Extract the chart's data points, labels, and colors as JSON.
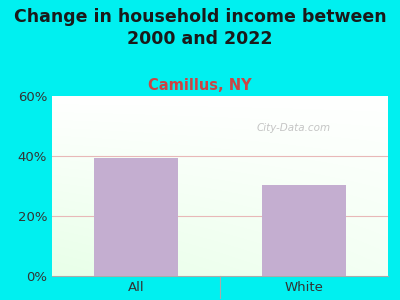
{
  "title": "Change in household income between\n2000 and 2022",
  "subtitle": "Camillus, NY",
  "categories": [
    "All",
    "White"
  ],
  "values": [
    39.5,
    30.5
  ],
  "bar_color": "#c4aed0",
  "title_fontsize": 12.5,
  "subtitle_fontsize": 10.5,
  "subtitle_color": "#cc4444",
  "title_color": "#1a1a1a",
  "tick_label_fontsize": 9.5,
  "ylim": [
    0,
    60
  ],
  "yticks": [
    0,
    20,
    40,
    60
  ],
  "yticklabels": [
    "0%",
    "20%",
    "40%",
    "60%"
  ],
  "bg_outer": "#00f0f0",
  "watermark": "City-Data.com",
  "grid_color": "#e8b8b8",
  "bar_width": 0.5,
  "divider_color": "#aaaaaa"
}
